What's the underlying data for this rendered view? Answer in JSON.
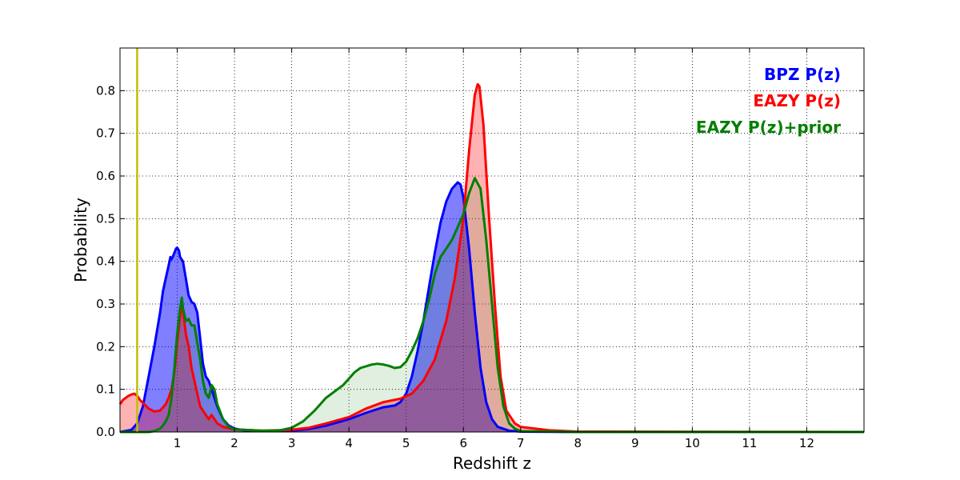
{
  "chart_data": {
    "type": "area",
    "xlabel": "Redshift z",
    "ylabel": "Probability",
    "xlim": [
      0,
      13
    ],
    "ylim": [
      0,
      0.9
    ],
    "x_ticks": [
      1,
      2,
      3,
      4,
      5,
      6,
      7,
      8,
      9,
      10,
      11,
      12
    ],
    "x_tick_labels": [
      "1",
      "2",
      "3",
      "4",
      "5",
      "6",
      "7",
      "8",
      "9",
      "10",
      "11",
      "12"
    ],
    "y_ticks": [
      0.0,
      0.1,
      0.2,
      0.3,
      0.4,
      0.5,
      0.6,
      0.7,
      0.8
    ],
    "y_tick_labels": [
      "0.0",
      "0.1",
      "0.2",
      "0.3",
      "0.4",
      "0.5",
      "0.6",
      "0.7",
      "0.8"
    ],
    "grid": true,
    "legend_position": "top-right",
    "reference_line": {
      "x": 0.3,
      "color": "#bfbf00"
    },
    "series": [
      {
        "name": "BPZ P(z)",
        "color": "#0000ff",
        "fill": "#0000ff",
        "points": [
          [
            0,
            0.0
          ],
          [
            0.2,
            0.005
          ],
          [
            0.3,
            0.02
          ],
          [
            0.4,
            0.06
          ],
          [
            0.5,
            0.13
          ],
          [
            0.6,
            0.2
          ],
          [
            0.7,
            0.28
          ],
          [
            0.75,
            0.33
          ],
          [
            0.8,
            0.36
          ],
          [
            0.85,
            0.39
          ],
          [
            0.88,
            0.41
          ],
          [
            0.9,
            0.405
          ],
          [
            0.92,
            0.41
          ],
          [
            0.95,
            0.42
          ],
          [
            0.98,
            0.43
          ],
          [
            1.0,
            0.432
          ],
          [
            1.03,
            0.425
          ],
          [
            1.05,
            0.41
          ],
          [
            1.1,
            0.4
          ],
          [
            1.15,
            0.36
          ],
          [
            1.2,
            0.32
          ],
          [
            1.25,
            0.305
          ],
          [
            1.3,
            0.3
          ],
          [
            1.35,
            0.28
          ],
          [
            1.4,
            0.22
          ],
          [
            1.45,
            0.16
          ],
          [
            1.5,
            0.13
          ],
          [
            1.55,
            0.12
          ],
          [
            1.6,
            0.1
          ],
          [
            1.7,
            0.06
          ],
          [
            1.8,
            0.03
          ],
          [
            1.9,
            0.015
          ],
          [
            2.0,
            0.008
          ],
          [
            2.2,
            0.003
          ],
          [
            2.5,
            0.002
          ],
          [
            3.0,
            0.003
          ],
          [
            3.3,
            0.007
          ],
          [
            3.6,
            0.015
          ],
          [
            4.0,
            0.03
          ],
          [
            4.3,
            0.045
          ],
          [
            4.6,
            0.058
          ],
          [
            4.8,
            0.062
          ],
          [
            4.9,
            0.07
          ],
          [
            5.0,
            0.09
          ],
          [
            5.1,
            0.13
          ],
          [
            5.2,
            0.19
          ],
          [
            5.3,
            0.26
          ],
          [
            5.4,
            0.34
          ],
          [
            5.5,
            0.42
          ],
          [
            5.6,
            0.49
          ],
          [
            5.7,
            0.54
          ],
          [
            5.8,
            0.57
          ],
          [
            5.9,
            0.585
          ],
          [
            5.95,
            0.58
          ],
          [
            6.0,
            0.55
          ],
          [
            6.1,
            0.43
          ],
          [
            6.2,
            0.28
          ],
          [
            6.3,
            0.15
          ],
          [
            6.4,
            0.07
          ],
          [
            6.5,
            0.03
          ],
          [
            6.6,
            0.012
          ],
          [
            6.8,
            0.003
          ],
          [
            7.0,
            0.001
          ],
          [
            8.0,
            0.0
          ],
          [
            13.0,
            0.0
          ]
        ]
      },
      {
        "name": "EAZY P(z)",
        "color": "#ff0000",
        "fill": "#ff0000",
        "points": [
          [
            0,
            0.065
          ],
          [
            0.05,
            0.075
          ],
          [
            0.1,
            0.08
          ],
          [
            0.15,
            0.085
          ],
          [
            0.2,
            0.088
          ],
          [
            0.25,
            0.09
          ],
          [
            0.3,
            0.085
          ],
          [
            0.35,
            0.075
          ],
          [
            0.4,
            0.068
          ],
          [
            0.5,
            0.055
          ],
          [
            0.6,
            0.048
          ],
          [
            0.7,
            0.05
          ],
          [
            0.8,
            0.065
          ],
          [
            0.85,
            0.08
          ],
          [
            0.9,
            0.1
          ],
          [
            0.95,
            0.14
          ],
          [
            1.0,
            0.21
          ],
          [
            1.05,
            0.27
          ],
          [
            1.08,
            0.3
          ],
          [
            1.1,
            0.285
          ],
          [
            1.15,
            0.23
          ],
          [
            1.2,
            0.2
          ],
          [
            1.25,
            0.15
          ],
          [
            1.3,
            0.12
          ],
          [
            1.35,
            0.09
          ],
          [
            1.4,
            0.06
          ],
          [
            1.5,
            0.04
          ],
          [
            1.55,
            0.03
          ],
          [
            1.6,
            0.04
          ],
          [
            1.65,
            0.03
          ],
          [
            1.7,
            0.02
          ],
          [
            1.8,
            0.012
          ],
          [
            2.0,
            0.006
          ],
          [
            2.5,
            0.003
          ],
          [
            3.0,
            0.005
          ],
          [
            3.3,
            0.01
          ],
          [
            3.6,
            0.02
          ],
          [
            4.0,
            0.035
          ],
          [
            4.3,
            0.055
          ],
          [
            4.6,
            0.07
          ],
          [
            4.9,
            0.078
          ],
          [
            5.1,
            0.09
          ],
          [
            5.3,
            0.12
          ],
          [
            5.5,
            0.17
          ],
          [
            5.7,
            0.26
          ],
          [
            5.85,
            0.36
          ],
          [
            6.0,
            0.5
          ],
          [
            6.1,
            0.66
          ],
          [
            6.2,
            0.79
          ],
          [
            6.25,
            0.815
          ],
          [
            6.28,
            0.81
          ],
          [
            6.35,
            0.72
          ],
          [
            6.45,
            0.5
          ],
          [
            6.55,
            0.3
          ],
          [
            6.65,
            0.13
          ],
          [
            6.75,
            0.05
          ],
          [
            6.9,
            0.02
          ],
          [
            7.0,
            0.012
          ],
          [
            7.5,
            0.004
          ],
          [
            8.0,
            0.001
          ],
          [
            13.0,
            0.0
          ]
        ]
      },
      {
        "name": "EAZY P(z)+prior",
        "color": "#007f00",
        "fill": "#007f00",
        "points": [
          [
            0,
            0.0
          ],
          [
            0.5,
            0.0
          ],
          [
            0.6,
            0.002
          ],
          [
            0.7,
            0.008
          ],
          [
            0.75,
            0.015
          ],
          [
            0.8,
            0.025
          ],
          [
            0.85,
            0.04
          ],
          [
            0.9,
            0.08
          ],
          [
            0.95,
            0.15
          ],
          [
            1.0,
            0.23
          ],
          [
            1.05,
            0.29
          ],
          [
            1.08,
            0.315
          ],
          [
            1.1,
            0.29
          ],
          [
            1.15,
            0.26
          ],
          [
            1.2,
            0.265
          ],
          [
            1.25,
            0.25
          ],
          [
            1.3,
            0.25
          ],
          [
            1.35,
            0.21
          ],
          [
            1.4,
            0.17
          ],
          [
            1.45,
            0.12
          ],
          [
            1.5,
            0.09
          ],
          [
            1.55,
            0.08
          ],
          [
            1.6,
            0.11
          ],
          [
            1.65,
            0.1
          ],
          [
            1.7,
            0.065
          ],
          [
            1.8,
            0.03
          ],
          [
            1.9,
            0.012
          ],
          [
            2.0,
            0.006
          ],
          [
            2.5,
            0.003
          ],
          [
            2.8,
            0.004
          ],
          [
            3.0,
            0.01
          ],
          [
            3.2,
            0.025
          ],
          [
            3.4,
            0.05
          ],
          [
            3.5,
            0.065
          ],
          [
            3.6,
            0.08
          ],
          [
            3.7,
            0.09
          ],
          [
            3.8,
            0.1
          ],
          [
            3.9,
            0.11
          ],
          [
            4.0,
            0.125
          ],
          [
            4.1,
            0.14
          ],
          [
            4.2,
            0.15
          ],
          [
            4.4,
            0.158
          ],
          [
            4.5,
            0.16
          ],
          [
            4.6,
            0.158
          ],
          [
            4.7,
            0.155
          ],
          [
            4.8,
            0.15
          ],
          [
            4.9,
            0.152
          ],
          [
            5.0,
            0.165
          ],
          [
            5.1,
            0.19
          ],
          [
            5.2,
            0.22
          ],
          [
            5.3,
            0.26
          ],
          [
            5.4,
            0.31
          ],
          [
            5.5,
            0.37
          ],
          [
            5.6,
            0.41
          ],
          [
            5.7,
            0.43
          ],
          [
            5.8,
            0.45
          ],
          [
            5.9,
            0.48
          ],
          [
            6.0,
            0.51
          ],
          [
            6.1,
            0.56
          ],
          [
            6.2,
            0.595
          ],
          [
            6.3,
            0.57
          ],
          [
            6.4,
            0.45
          ],
          [
            6.5,
            0.3
          ],
          [
            6.6,
            0.15
          ],
          [
            6.7,
            0.06
          ],
          [
            6.8,
            0.02
          ],
          [
            6.9,
            0.008
          ],
          [
            7.0,
            0.002
          ],
          [
            8.0,
            0.0
          ],
          [
            13.0,
            0.0
          ]
        ]
      }
    ]
  }
}
